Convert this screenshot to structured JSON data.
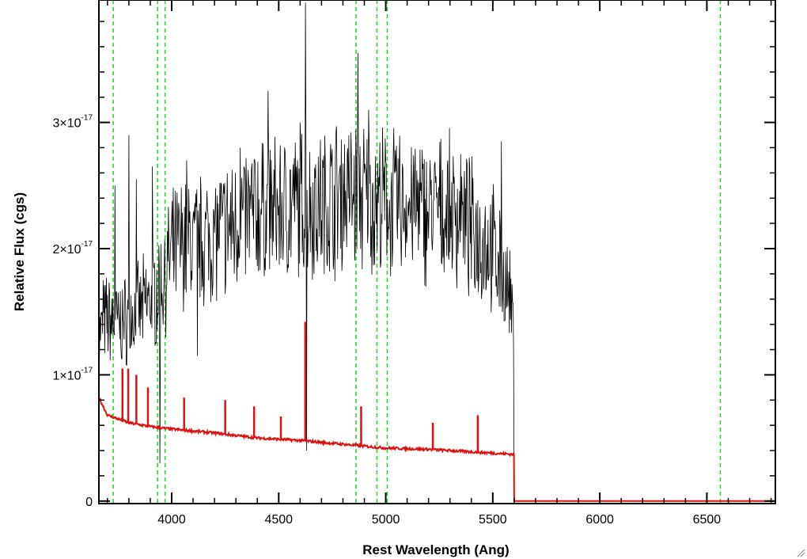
{
  "chart_data": {
    "type": "line",
    "title": "",
    "xlabel": "Rest Wavelength (Ang)",
    "ylabel": "Relative Flux (cgs)",
    "xlim": [
      3660,
      6820
    ],
    "ylim": [
      -2e-19,
      3.97e-17
    ],
    "grid": false,
    "x_ticks": [
      {
        "value": 4000,
        "label": "4000"
      },
      {
        "value": 4500,
        "label": "4500"
      },
      {
        "value": 5000,
        "label": "5000"
      },
      {
        "value": 5500,
        "label": "5500"
      },
      {
        "value": 6000,
        "label": "6000"
      },
      {
        "value": 6500,
        "label": "6500"
      }
    ],
    "y_ticks": [
      {
        "value": 0,
        "mantissa": "0",
        "exponent": ""
      },
      {
        "value": 1e-17,
        "mantissa": "1×10",
        "exponent": "-17"
      },
      {
        "value": 2e-17,
        "mantissa": "2×10",
        "exponent": "-17"
      },
      {
        "value": 3e-17,
        "mantissa": "3×10",
        "exponent": "-17"
      }
    ],
    "series": [
      {
        "color": "#000000",
        "style": "noisy-spectrum",
        "x": [
          3660,
          3700,
          3750,
          3800,
          3850,
          3900,
          3950,
          4000,
          4050,
          4100,
          4200,
          4300,
          4400,
          4500,
          4600,
          4700,
          4800,
          4900,
          5000,
          5100,
          5200,
          5300,
          5400,
          5500,
          5560,
          5585,
          5595,
          5600,
          6820
        ],
        "y": [
          1.3e-17,
          1.45e-17,
          1.4e-17,
          1.45e-17,
          1.5e-17,
          1.6e-17,
          1.7e-17,
          1.95e-17,
          2.05e-17,
          2.05e-17,
          2.1e-17,
          2.2e-17,
          2.3e-17,
          2.3e-17,
          2.35e-17,
          2.35e-17,
          2.45e-17,
          2.4e-17,
          2.35e-17,
          2.35e-17,
          2.3e-17,
          2.3e-17,
          2.15e-17,
          2e-17,
          1.7e-17,
          1.55e-17,
          1.35e-17,
          0,
          0
        ],
        "spikes": [
          {
            "x": 3680,
            "y": 1.75e-17
          },
          {
            "x": 3735,
            "y": 2.5e-17
          },
          {
            "x": 3800,
            "y": 2.9e-17
          },
          {
            "x": 3835,
            "y": 2.55e-17
          },
          {
            "x": 3910,
            "y": 2.65e-17
          },
          {
            "x": 3945,
            "y": 3e-18
          },
          {
            "x": 4070,
            "y": 2.7e-17
          },
          {
            "x": 4120,
            "y": 1.15e-17
          },
          {
            "x": 4320,
            "y": 2.8e-17
          },
          {
            "x": 4450,
            "y": 3.25e-17
          },
          {
            "x": 4600,
            "y": 3e-17
          },
          {
            "x": 4624,
            "y": 3.95e-17
          },
          {
            "x": 4630,
            "y": 4e-18
          },
          {
            "x": 4870,
            "y": 3.55e-17
          },
          {
            "x": 4920,
            "y": 3.1e-17
          },
          {
            "x": 5350,
            "y": 2.75e-17
          },
          {
            "x": 5540,
            "y": 2.85e-17
          }
        ]
      },
      {
        "color": "#dd1111",
        "style": "model",
        "x": [
          3660,
          3700,
          3800,
          3900,
          4000,
          4200,
          4400,
          4600,
          4800,
          5000,
          5200,
          5400,
          5599,
          5600,
          6820
        ],
        "y": [
          8.2e-18,
          6.8e-18,
          6.2e-18,
          5.9e-18,
          5.7e-18,
          5.4e-18,
          5e-18,
          4.8e-18,
          4.5e-18,
          4.2e-18,
          4.1e-18,
          3.9e-18,
          3.7e-18,
          0,
          0
        ],
        "lines": [
          {
            "x": 3770,
            "y": 1.05e-17
          },
          {
            "x": 3797,
            "y": 1.05e-17
          },
          {
            "x": 3835,
            "y": 1e-17
          },
          {
            "x": 3889,
            "y": 9e-18
          },
          {
            "x": 4058,
            "y": 8.2e-18
          },
          {
            "x": 4250,
            "y": 8e-18
          },
          {
            "x": 4385,
            "y": 7.5e-18
          },
          {
            "x": 4510,
            "y": 6.7e-18
          },
          {
            "x": 4624,
            "y": 1.42e-17
          },
          {
            "x": 4885,
            "y": 7.5e-18
          },
          {
            "x": 5220,
            "y": 6.2e-18
          },
          {
            "x": 5430,
            "y": 6.8e-18
          }
        ]
      }
    ],
    "vertical_lines": {
      "color": "#22dd22",
      "style": "dashed",
      "x": [
        3727,
        3934,
        3969,
        4861,
        4959,
        5007,
        6563
      ]
    }
  }
}
